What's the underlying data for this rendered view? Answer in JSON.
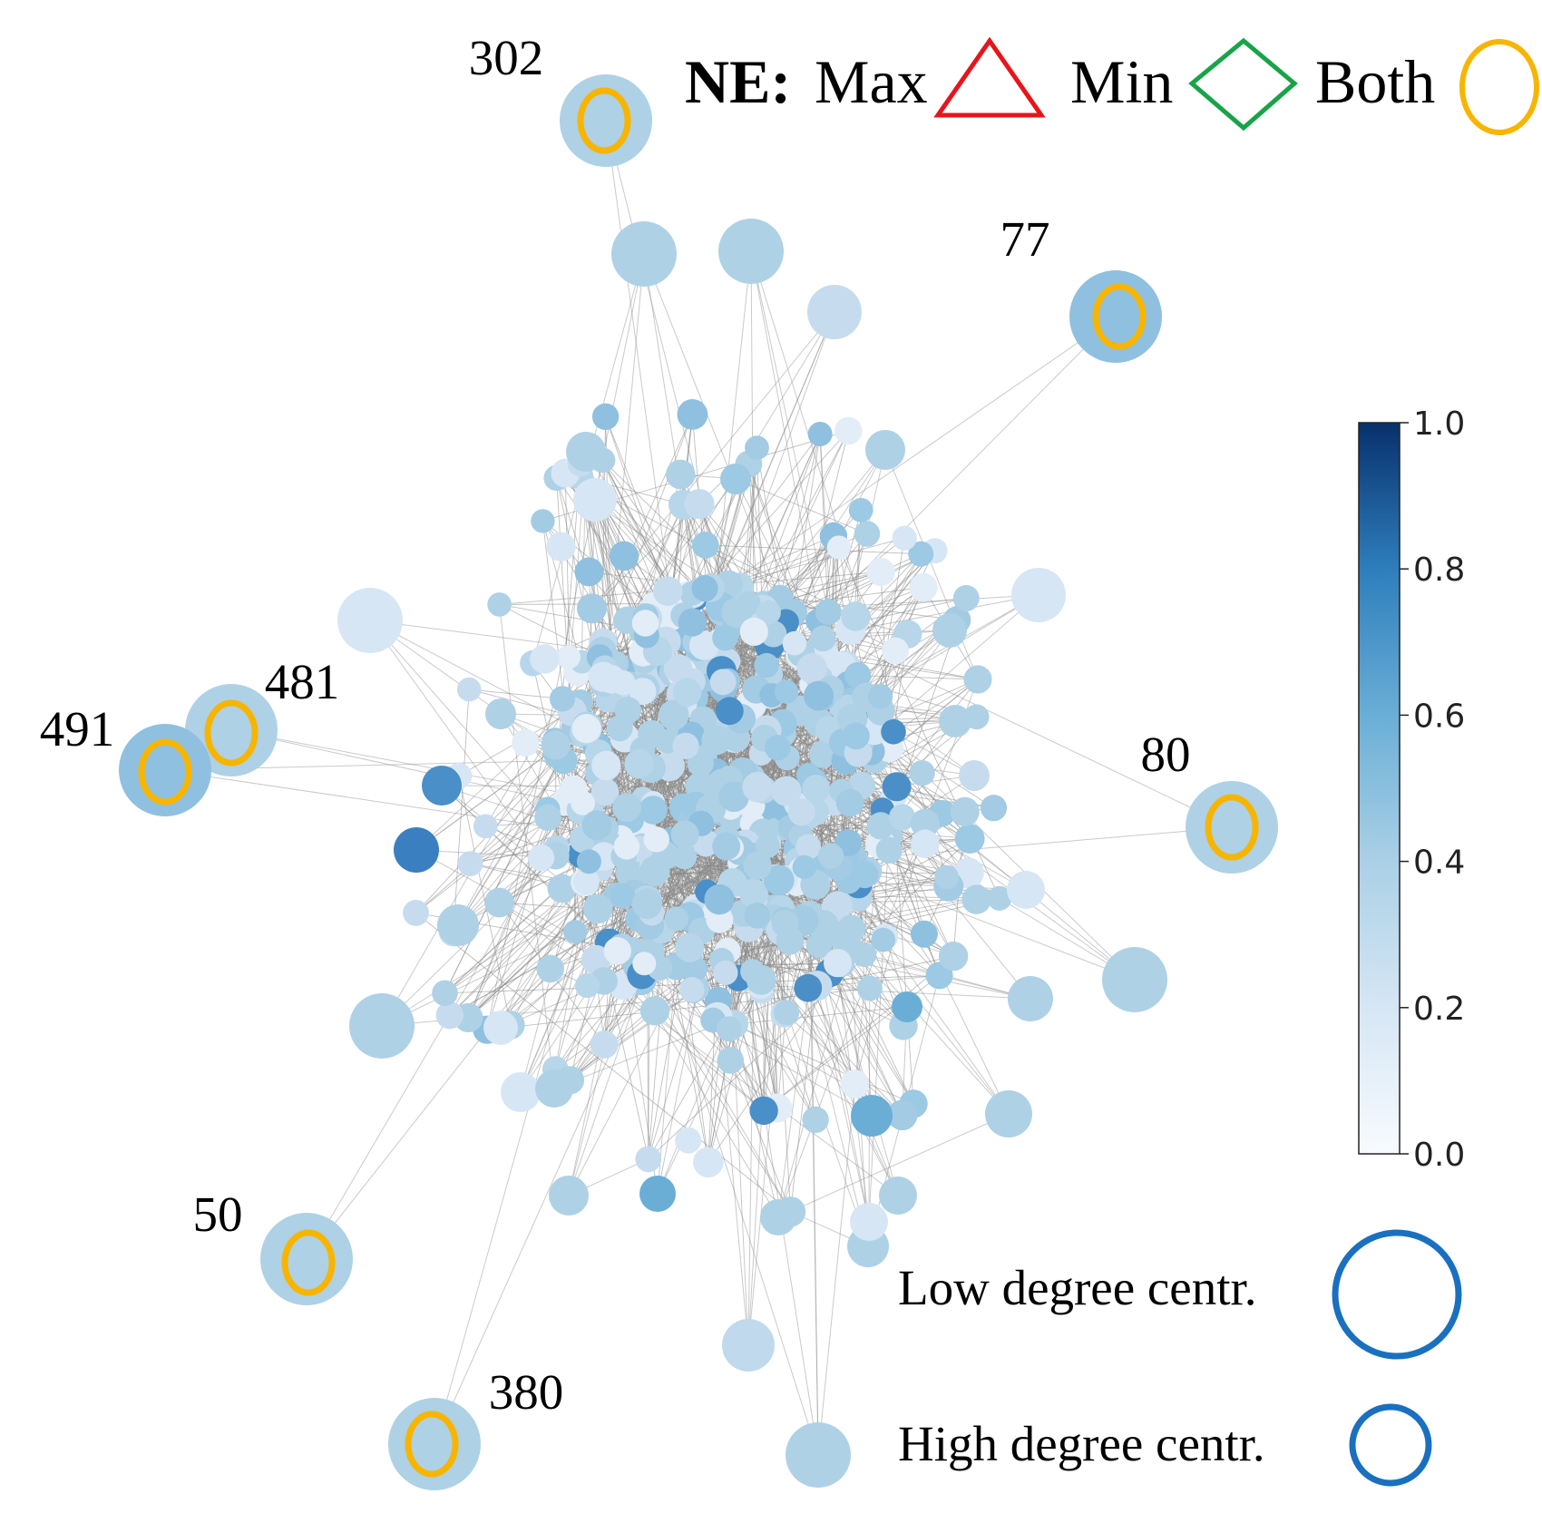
{
  "legend": {
    "ne_label": "NE:",
    "max_label": "Max",
    "min_label": "Min",
    "both_label": "Both",
    "max_color": "#e8141c",
    "min_color": "#19a349",
    "both_color": "#f7b500"
  },
  "size_legend": {
    "low_label": "Low degree centr.",
    "high_label": "High degree centr.",
    "ring_color": "#1a70bf"
  },
  "colorbar": {
    "ticks": [
      "0.0",
      "0.2",
      "0.4",
      "0.6",
      "0.8",
      "1.0"
    ],
    "min": 0.0,
    "max": 1.0,
    "colormap": "Blues"
  },
  "highlighted_nodes": [
    {
      "label": "302",
      "marker": "Both"
    },
    {
      "label": "77",
      "marker": "Both"
    },
    {
      "label": "481",
      "marker": "Both"
    },
    {
      "label": "491",
      "marker": "Both"
    },
    {
      "label": "80",
      "marker": "Both"
    },
    {
      "label": "50",
      "marker": "Both"
    },
    {
      "label": "380",
      "marker": "Both"
    }
  ],
  "colors": {
    "edge": "#8a8a8a",
    "node_typical": "#a9cfe5"
  }
}
